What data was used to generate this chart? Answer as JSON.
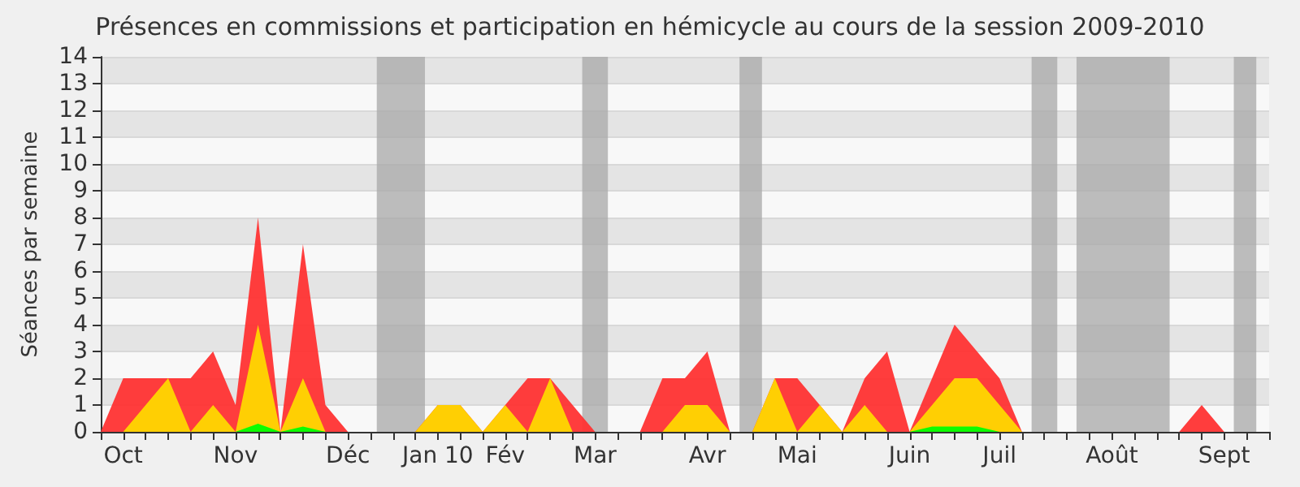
{
  "chart_data": {
    "type": "area",
    "stacked": true,
    "title": "Présences en commissions et participation en hémicycle au cours de la session 2009-2010",
    "ylabel": "Séances par semaine",
    "x": [
      "2009-09-28",
      "2009-10-05",
      "2009-10-12",
      "2009-10-19",
      "2009-10-26",
      "2009-11-02",
      "2009-11-09",
      "2009-11-16",
      "2009-11-23",
      "2009-11-30",
      "2009-12-07",
      "2009-12-14",
      "2009-12-21",
      "2009-12-28",
      "2010-01-04",
      "2010-01-11",
      "2010-01-18",
      "2010-01-25",
      "2010-02-01",
      "2010-02-08",
      "2010-02-15",
      "2010-02-22",
      "2010-03-01",
      "2010-03-08",
      "2010-03-15",
      "2010-03-22",
      "2010-03-29",
      "2010-04-05",
      "2010-04-12",
      "2010-04-19",
      "2010-04-26",
      "2010-05-03",
      "2010-05-10",
      "2010-05-17",
      "2010-05-24",
      "2010-05-31",
      "2010-06-07",
      "2010-06-14",
      "2010-06-21",
      "2010-06-28",
      "2010-07-05",
      "2010-07-12",
      "2010-07-19",
      "2010-07-26",
      "2010-08-02",
      "2010-08-09",
      "2010-08-16",
      "2010-08-23",
      "2010-08-30",
      "2010-09-06",
      "2010-09-13",
      "2010-09-20",
      "2010-09-27"
    ],
    "series": [
      {
        "color": "#00ff00",
        "values": [
          0,
          0,
          0,
          0,
          0,
          0,
          0,
          0.3,
          0,
          0.2,
          0,
          0,
          0,
          0,
          0,
          0,
          0,
          0,
          0,
          0,
          0,
          0,
          0,
          0,
          0,
          0,
          0,
          0,
          0,
          0,
          0,
          0,
          0,
          0,
          0,
          0,
          0,
          0.2,
          0.2,
          0.2,
          0,
          0,
          0,
          0,
          0,
          0,
          0,
          0,
          0,
          0,
          0,
          0,
          0
        ]
      },
      {
        "color": "#ffd700",
        "values": [
          0,
          0,
          1,
          2,
          0,
          1,
          0,
          3.7,
          0,
          1.8,
          0,
          0,
          0,
          0,
          0,
          1,
          1,
          0,
          1,
          0,
          2,
          0,
          0,
          0,
          0,
          0,
          1,
          1,
          0,
          0,
          2,
          0,
          1,
          0,
          1,
          0,
          0,
          0.8,
          1.8,
          1.8,
          1,
          0,
          0,
          0,
          0,
          0,
          0,
          0,
          0,
          0,
          0,
          0,
          0
        ]
      },
      {
        "color": "#ff3333",
        "values": [
          0,
          2,
          1,
          0,
          2,
          2,
          1,
          4,
          0,
          5,
          1,
          0,
          0,
          0,
          0,
          0,
          0,
          0,
          0,
          2,
          0,
          1,
          0,
          0,
          0,
          2,
          1,
          2,
          0,
          0,
          0,
          2,
          0,
          0,
          1,
          3,
          0,
          1,
          2,
          1,
          1,
          0,
          0,
          0,
          0,
          0,
          0,
          0,
          0,
          1,
          0,
          0,
          0
        ]
      }
    ],
    "xlim": [
      "2009-09-28",
      "2010-09-27"
    ],
    "xticks": [
      {
        "value": "2009-09-28",
        "label": null
      },
      {
        "value": "2009-10-05",
        "label": "Oct"
      },
      {
        "value": "2009-10-12",
        "label": null
      },
      {
        "value": "2009-10-19",
        "label": null
      },
      {
        "value": "2009-10-26",
        "label": null
      },
      {
        "value": "2009-11-02",
        "label": null
      },
      {
        "value": "2009-11-09",
        "label": "Nov"
      },
      {
        "value": "2009-11-16",
        "label": null
      },
      {
        "value": "2009-11-23",
        "label": null
      },
      {
        "value": "2009-11-30",
        "label": null
      },
      {
        "value": "2009-12-07",
        "label": null
      },
      {
        "value": "2009-12-14",
        "label": "Déc"
      },
      {
        "value": "2009-12-21",
        "label": null
      },
      {
        "value": "2009-12-28",
        "label": null
      },
      {
        "value": "2010-01-04",
        "label": null
      },
      {
        "value": "2010-01-11",
        "label": "Jan 10"
      },
      {
        "value": "2010-01-18",
        "label": null
      },
      {
        "value": "2010-01-25",
        "label": null
      },
      {
        "value": "2010-02-01",
        "label": "Fév"
      },
      {
        "value": "2010-02-08",
        "label": null
      },
      {
        "value": "2010-02-15",
        "label": null
      },
      {
        "value": "2010-02-22",
        "label": null
      },
      {
        "value": "2010-03-01",
        "label": "Mar"
      },
      {
        "value": "2010-03-08",
        "label": null
      },
      {
        "value": "2010-03-15",
        "label": null
      },
      {
        "value": "2010-03-22",
        "label": null
      },
      {
        "value": "2010-03-29",
        "label": null
      },
      {
        "value": "2010-04-05",
        "label": "Avr"
      },
      {
        "value": "2010-04-12",
        "label": null
      },
      {
        "value": "2010-04-19",
        "label": null
      },
      {
        "value": "2010-04-26",
        "label": null
      },
      {
        "value": "2010-05-03",
        "label": "Mai"
      },
      {
        "value": "2010-05-10",
        "label": null
      },
      {
        "value": "2010-05-17",
        "label": null
      },
      {
        "value": "2010-05-24",
        "label": null
      },
      {
        "value": "2010-05-31",
        "label": null
      },
      {
        "value": "2010-06-07",
        "label": "Juin"
      },
      {
        "value": "2010-06-14",
        "label": null
      },
      {
        "value": "2010-06-21",
        "label": null
      },
      {
        "value": "2010-06-28",
        "label": null
      },
      {
        "value": "2010-07-05",
        "label": "Juil"
      },
      {
        "value": "2010-07-12",
        "label": null
      },
      {
        "value": "2010-07-19",
        "label": null
      },
      {
        "value": "2010-07-26",
        "label": null
      },
      {
        "value": "2010-08-02",
        "label": null
      },
      {
        "value": "2010-08-09",
        "label": "Août"
      },
      {
        "value": "2010-08-16",
        "label": null
      },
      {
        "value": "2010-08-23",
        "label": null
      },
      {
        "value": "2010-08-30",
        "label": null
      },
      {
        "value": "2010-09-06",
        "label": null
      },
      {
        "value": "2010-09-13",
        "label": "Sept"
      },
      {
        "value": "2010-09-20",
        "label": null
      },
      {
        "value": "2010-09-27",
        "label": null
      }
    ],
    "ylim": [
      0,
      14
    ],
    "yticks": [
      0,
      1,
      2,
      3,
      4,
      5,
      6,
      7,
      8,
      9,
      10,
      11,
      12,
      13,
      14
    ],
    "grid": "y",
    "bands": [
      {
        "axis": "x",
        "from": "2009-12-23",
        "to": "2010-01-07",
        "color": "#a8a8a8"
      },
      {
        "axis": "x",
        "from": "2010-02-25",
        "to": "2010-03-05",
        "color": "#a8a8a8"
      },
      {
        "axis": "x",
        "from": "2010-04-15",
        "to": "2010-04-22",
        "color": "#a8a8a8"
      },
      {
        "axis": "x",
        "from": "2010-07-15",
        "to": "2010-07-23",
        "color": "#a8a8a8"
      },
      {
        "axis": "x",
        "from": "2010-07-29",
        "to": "2010-08-27",
        "color": "#a8a8a8"
      },
      {
        "axis": "x",
        "from": "2010-09-16",
        "to": "2010-09-23",
        "color": "#a8a8a8"
      }
    ]
  }
}
